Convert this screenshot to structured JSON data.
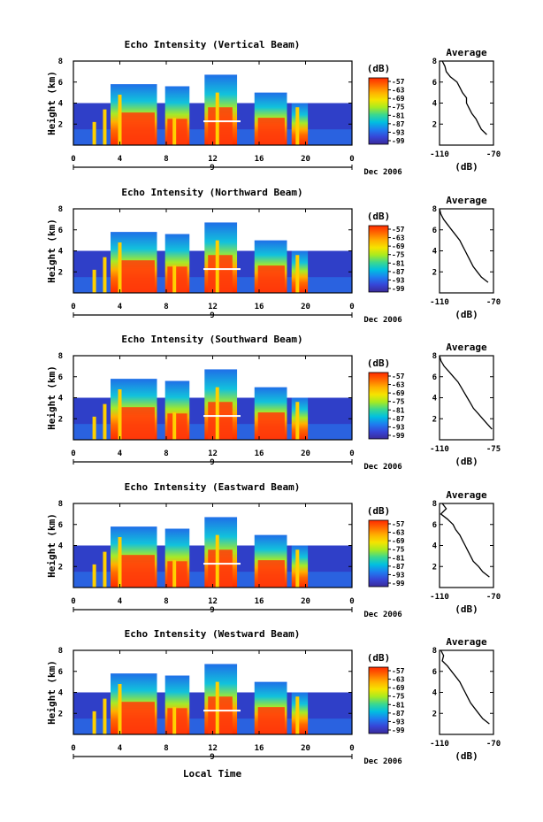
{
  "figure": {
    "xlabel": "Local Time",
    "date_label": "Dec 2006",
    "x_ticks": [
      "0",
      "4",
      "8",
      "12",
      "16",
      "20",
      "0"
    ],
    "day_marker": "9",
    "y_ticks": [
      "2",
      "4",
      "6",
      "8"
    ],
    "ylabel": "Height (km)",
    "colorbar_unit": "(dB)",
    "colorbar_ticks": [
      "-57",
      "-63",
      "-69",
      "-75",
      "-81",
      "-87",
      "-93",
      "-99"
    ],
    "colorbar_colors": [
      "#ff2a00",
      "#ff6a00",
      "#ffb000",
      "#f5e400",
      "#a8ea20",
      "#3ad890",
      "#00c0e0",
      "#1e7ef0",
      "#3646d8",
      "#3a2a9a"
    ],
    "avg_title": "Average",
    "avg_xlabel": "(dB)",
    "avg_y_ticks": [
      "2",
      "4",
      "6",
      "8"
    ]
  },
  "chart_data": [
    {
      "type": "heatmap",
      "title": "Echo Intensity (Vertical Beam)",
      "xlabel": "",
      "ylabel": "Height (km)",
      "xlim": [
        0,
        24
      ],
      "ylim": [
        0,
        8
      ],
      "zlabel": "(dB)",
      "zlim": [
        -99,
        -57
      ],
      "average_profile": {
        "title": "Average",
        "xlabel": "(dB)",
        "x_ticks": [
          "-110",
          "-70"
        ],
        "xlim": [
          -110,
          -70
        ],
        "height_km": [
          8.0,
          7.5,
          7.0,
          6.5,
          6.0,
          5.5,
          5.0,
          4.5,
          4.0,
          3.5,
          3.0,
          2.5,
          2.0,
          1.5,
          1.0
        ],
        "db": [
          -108,
          -106,
          -105,
          -102,
          -97,
          -95,
          -93,
          -90,
          -90,
          -88,
          -86,
          -83,
          -81,
          -79,
          -75
        ]
      }
    },
    {
      "type": "heatmap",
      "title": "Echo Intensity (Northward Beam)",
      "xlabel": "",
      "ylabel": "Height (km)",
      "xlim": [
        0,
        24
      ],
      "ylim": [
        0,
        8
      ],
      "zlabel": "(dB)",
      "zlim": [
        -99,
        -57
      ],
      "average_profile": {
        "title": "Average",
        "xlabel": "(dB)",
        "x_ticks": [
          "-110",
          "-70"
        ],
        "xlim": [
          -110,
          -70
        ],
        "height_km": [
          8.0,
          7.5,
          7.0,
          6.5,
          6.0,
          5.5,
          5.0,
          4.5,
          4.0,
          3.5,
          3.0,
          2.5,
          2.0,
          1.5,
          1.0
        ],
        "db": [
          -110,
          -109,
          -107,
          -104,
          -101,
          -98,
          -95,
          -93,
          -91,
          -89,
          -87,
          -85,
          -82,
          -79,
          -74
        ]
      }
    },
    {
      "type": "heatmap",
      "title": "Echo Intensity (Southward Beam)",
      "xlabel": "",
      "ylabel": "Height (km)",
      "xlim": [
        0,
        24
      ],
      "ylim": [
        0,
        8
      ],
      "zlabel": "(dB)",
      "zlim": [
        -99,
        -57
      ],
      "average_profile": {
        "title": "Average",
        "xlabel": "(dB)",
        "x_ticks": [
          "-110",
          "-75"
        ],
        "xlim": [
          -110,
          -75
        ],
        "height_km": [
          8.0,
          7.5,
          7.0,
          6.5,
          6.0,
          5.5,
          5.0,
          4.5,
          4.0,
          3.5,
          3.0,
          2.5,
          2.0,
          1.5,
          1.0
        ],
        "db": [
          -110,
          -109,
          -107,
          -104,
          -101,
          -98,
          -96,
          -94,
          -92,
          -90,
          -88,
          -85,
          -82,
          -79,
          -76
        ]
      }
    },
    {
      "type": "heatmap",
      "title": "Echo Intensity (Eastward Beam)",
      "xlabel": "",
      "ylabel": "Height (km)",
      "xlim": [
        0,
        24
      ],
      "ylim": [
        0,
        8
      ],
      "zlabel": "(dB)",
      "zlim": [
        -99,
        -57
      ],
      "average_profile": {
        "title": "Average",
        "xlabel": "(dB)",
        "x_ticks": [
          "-110",
          "-70"
        ],
        "xlim": [
          -110,
          -70
        ],
        "height_km": [
          8.0,
          7.5,
          7.0,
          6.5,
          6.0,
          5.5,
          5.0,
          4.5,
          4.0,
          3.5,
          3.0,
          2.5,
          2.0,
          1.5,
          1.0
        ],
        "db": [
          -108,
          -105,
          -109,
          -104,
          -100,
          -98,
          -95,
          -93,
          -91,
          -89,
          -87,
          -85,
          -81,
          -78,
          -73
        ]
      }
    },
    {
      "type": "heatmap",
      "title": "Echo Intensity (Westward Beam)",
      "xlabel": "Local Time",
      "ylabel": "Height (km)",
      "xlim": [
        0,
        24
      ],
      "ylim": [
        0,
        8
      ],
      "zlabel": "(dB)",
      "zlim": [
        -99,
        -57
      ],
      "average_profile": {
        "title": "Average",
        "xlabel": "(dB)",
        "x_ticks": [
          "-110",
          "-70"
        ],
        "xlim": [
          -110,
          -70
        ],
        "height_km": [
          8.0,
          7.5,
          7.0,
          6.5,
          6.0,
          5.5,
          5.0,
          4.5,
          4.0,
          3.5,
          3.0,
          2.5,
          2.0,
          1.5,
          1.0
        ],
        "db": [
          -109,
          -107,
          -108,
          -104,
          -101,
          -98,
          -95,
          -93,
          -91,
          -89,
          -87,
          -84,
          -81,
          -78,
          -73
        ]
      }
    }
  ]
}
